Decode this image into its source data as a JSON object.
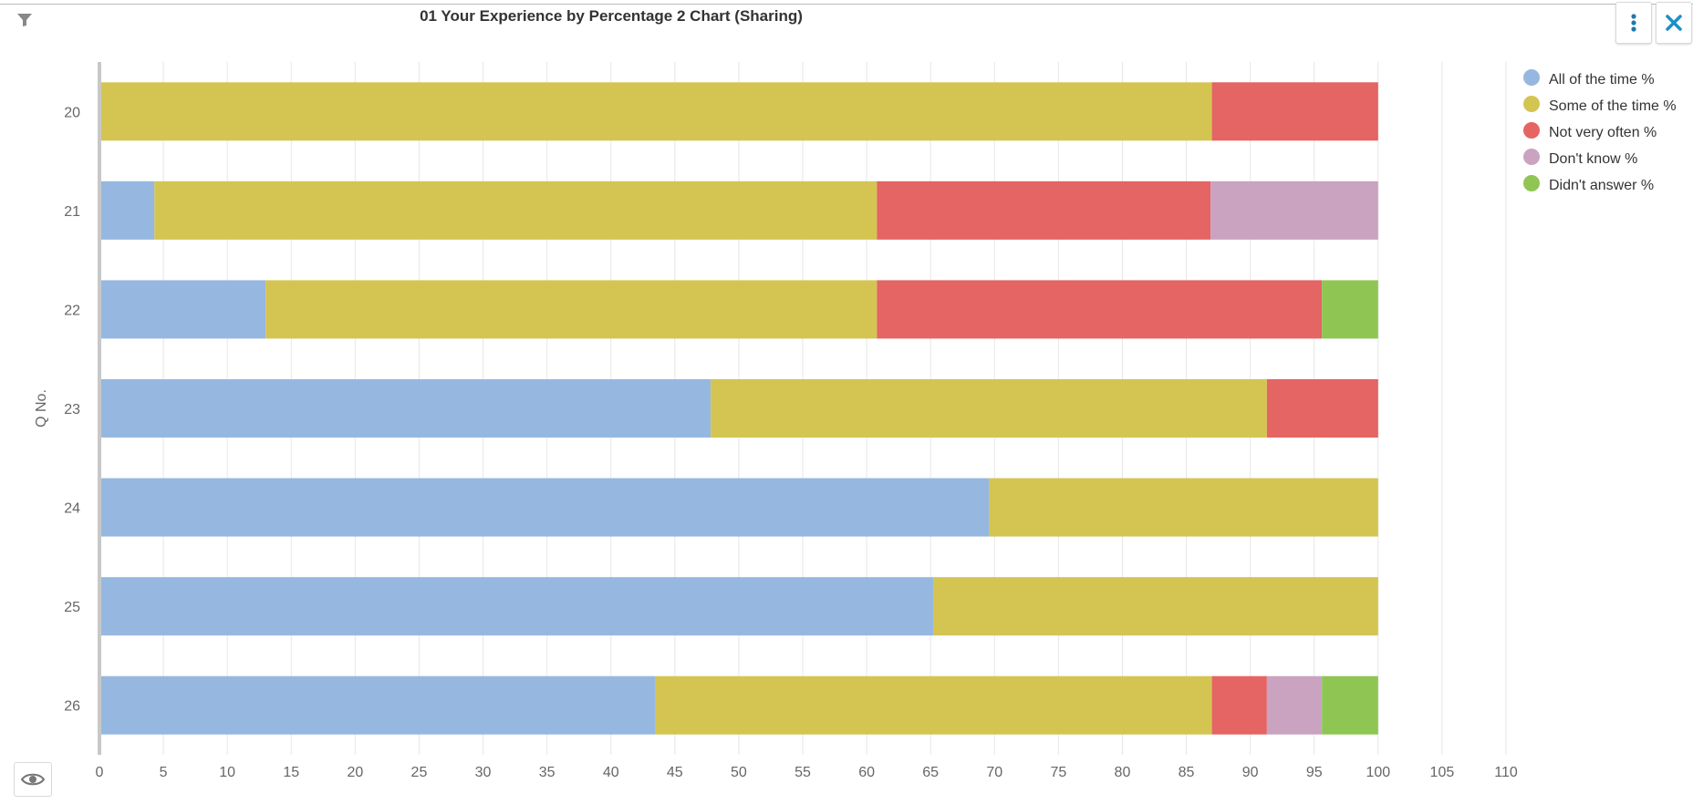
{
  "toolbar": {
    "filter_icon": "filter-icon",
    "more_icon": "more-vertical-icon",
    "close_icon": "close-icon",
    "eye_icon": "eye-icon"
  },
  "chart_data": {
    "type": "bar",
    "orientation": "horizontal",
    "stacked": true,
    "title": "01 Your Experience by Percentage 2 Chart (Sharing)",
    "ylabel": "Q No.",
    "xlabel": "",
    "categories": [
      "20",
      "21",
      "22",
      "23",
      "24",
      "25",
      "26"
    ],
    "xlim": [
      0,
      110
    ],
    "xticks": [
      "0",
      "5",
      "10",
      "15",
      "20",
      "25",
      "30",
      "35",
      "40",
      "45",
      "50",
      "55",
      "60",
      "65",
      "70",
      "75",
      "80",
      "85",
      "90",
      "95",
      "100",
      "105",
      "110"
    ],
    "grid": true,
    "legend_position": "right",
    "series": [
      {
        "name": "All of the time %",
        "color": "#96b8e0",
        "values": [
          0,
          4.3,
          13.0,
          47.8,
          69.6,
          65.2,
          43.5
        ]
      },
      {
        "name": "Some of the time %",
        "color": "#d4c552",
        "values": [
          87.0,
          56.5,
          47.8,
          43.5,
          30.4,
          34.8,
          43.5
        ]
      },
      {
        "name": "Not very often %",
        "color": "#e56464",
        "values": [
          13.0,
          26.1,
          34.8,
          8.7,
          0,
          0,
          4.3
        ]
      },
      {
        "name": "Don't know %",
        "color": "#c9a3c0",
        "values": [
          0,
          13.1,
          0,
          0,
          0,
          0,
          4.3
        ]
      },
      {
        "name": "Didn't answer %",
        "color": "#8fc653",
        "values": [
          0,
          0,
          4.4,
          0,
          0,
          0,
          4.4
        ]
      }
    ]
  }
}
